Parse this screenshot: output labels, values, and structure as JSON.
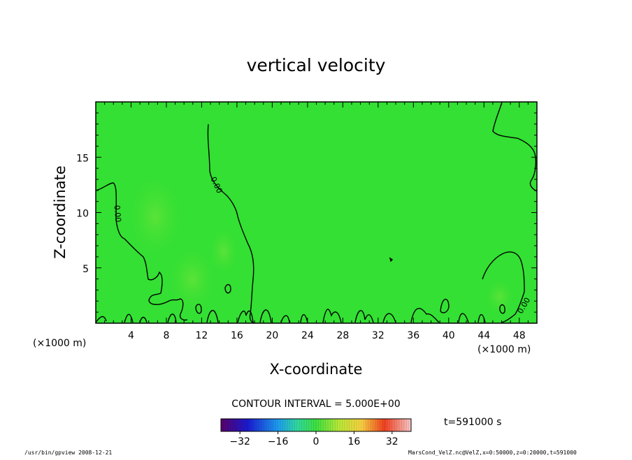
{
  "chart_data": {
    "type": "heatmap",
    "title": "vertical velocity",
    "xlabel": "X-coordinate",
    "ylabel": "Z-coordinate",
    "x_unit_left": "(×1000 m)",
    "x_unit_right": "(×1000 m)",
    "xlim": [
      0,
      50
    ],
    "ylim": [
      0,
      20
    ],
    "x_ticks": [
      4,
      8,
      12,
      16,
      20,
      24,
      28,
      32,
      36,
      40,
      44,
      48
    ],
    "y_ticks": [
      5,
      10,
      15
    ],
    "contour_interval_text": "CONTOUR INTERVAL = 5.000E+00",
    "time_text": "t=591000 s",
    "colorbar": {
      "range": [
        -40,
        40
      ],
      "ticks": [
        -32,
        -16,
        0,
        16,
        32
      ],
      "colormap": "rainbow"
    },
    "contour_labels": [
      {
        "text": "0.00",
        "x": 2.5,
        "z": 9.9,
        "angle": 85
      },
      {
        "text": "0.00",
        "x": 13.7,
        "z": 12.5,
        "angle": 65
      },
      {
        "text": "0.00",
        "x": 48.5,
        "z": 1.6,
        "angle": -60
      }
    ],
    "background_value": 0,
    "background_color": "#33e033"
  },
  "footer": {
    "left": "/usr/bin/gpview   2008-12-21",
    "right": "MarsCond_VelZ.nc@VelZ,x=0:50000,z=0:20000,t=591000"
  }
}
